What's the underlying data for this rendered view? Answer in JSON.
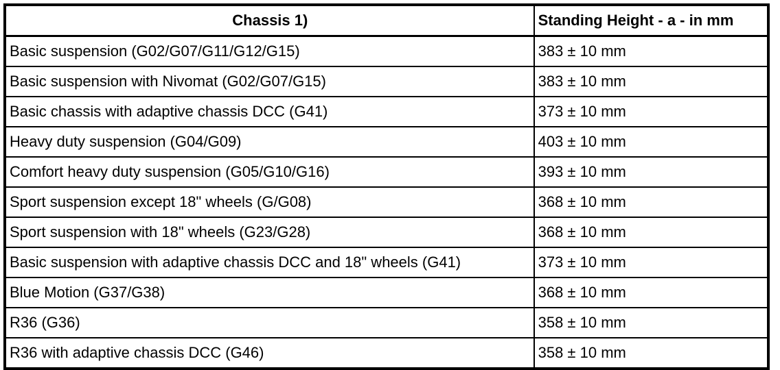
{
  "table": {
    "title_note": "1)",
    "columns": [
      "Chassis 1)",
      "Standing Height - a - in mm"
    ],
    "rows": [
      {
        "chassis": "Basic suspension (G02/G07/G11/G12/G15)",
        "standing_height": "383 ± 10 mm"
      },
      {
        "chassis": "Basic suspension with Nivomat (G02/G07/G15)",
        "standing_height": "383 ± 10 mm"
      },
      {
        "chassis": "Basic chassis with adaptive chassis DCC (G41)",
        "standing_height": "373 ± 10 mm"
      },
      {
        "chassis": "Heavy duty suspension (G04/G09)",
        "standing_height": "403 ± 10 mm"
      },
      {
        "chassis": "Comfort heavy duty suspension (G05/G10/G16)",
        "standing_height": "393 ± 10 mm"
      },
      {
        "chassis": "Sport suspension except 18\" wheels (G/G08)",
        "standing_height": "368 ± 10 mm"
      },
      {
        "chassis": "Sport suspension with 18\" wheels (G23/G28)",
        "standing_height": "368 ± 10 mm"
      },
      {
        "chassis": "Basic suspension with adaptive chassis DCC and 18\" wheels (G41)",
        "standing_height": "373 ± 10 mm"
      },
      {
        "chassis": "Blue Motion (G37/G38)",
        "standing_height": "368 ± 10 mm"
      },
      {
        "chassis": "R36 (G36)",
        "standing_height": "358 ± 10 mm"
      },
      {
        "chassis": "R36 with adaptive chassis DCC (G46)",
        "standing_height": "358 ± 10 mm"
      }
    ],
    "colors": {
      "text": "#000000",
      "border": "#000000",
      "background": "#ffffff"
    }
  }
}
